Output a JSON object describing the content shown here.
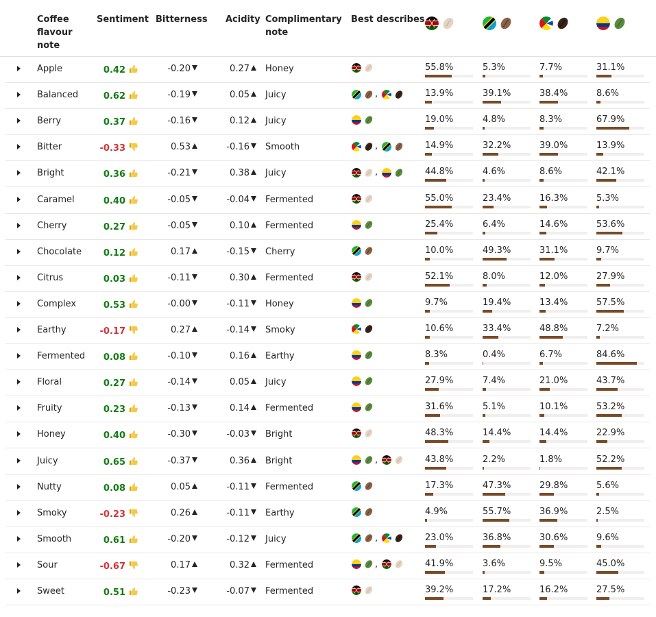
{
  "headers": {
    "flavour": "Coffee flavour note",
    "sentiment": "Sentiment",
    "bitterness": "Bitterness",
    "acidity": "Acidity",
    "complimentary": "Complimentary note",
    "best": "Best describes",
    "regions": [
      {
        "flag": "kenya-flag",
        "bean": "light-bean"
      },
      {
        "flag": "tanzania-flag",
        "bean": "medium-bean"
      },
      {
        "flag": "ethiopia-flag",
        "bean": "dark-bean"
      },
      {
        "flag": "colombia-flag",
        "bean": "green-bean"
      }
    ]
  },
  "colors": {
    "positive": "#107c10",
    "negative": "#d13438",
    "bar": "#7a4a26",
    "track": "#f0efee"
  },
  "rows": [
    {
      "note": "Apple",
      "sentiment": "0.42",
      "sent_dir": "up",
      "bitterness": "-0.20",
      "bit_dir": "down",
      "acidity": "0.27",
      "acid_dir": "up",
      "comp": "Honey",
      "best": [
        [
          "kenya",
          "light"
        ]
      ],
      "pct": [
        "55.8%",
        "5.3%",
        "7.7%",
        "31.1%"
      ],
      "frac": [
        0.558,
        0.053,
        0.077,
        0.311
      ]
    },
    {
      "note": "Balanced",
      "sentiment": "0.62",
      "sent_dir": "up",
      "bitterness": "-0.19",
      "bit_dir": "down",
      "acidity": "0.05",
      "acid_dir": "up",
      "comp": "Juicy",
      "best": [
        [
          "tanzania",
          "medium"
        ],
        [
          "ethiopia",
          "dark"
        ]
      ],
      "pct": [
        "13.9%",
        "39.1%",
        "38.4%",
        "8.6%"
      ],
      "frac": [
        0.139,
        0.391,
        0.384,
        0.086
      ]
    },
    {
      "note": "Berry",
      "sentiment": "0.37",
      "sent_dir": "up",
      "bitterness": "-0.16",
      "bit_dir": "down",
      "acidity": "0.12",
      "acid_dir": "up",
      "comp": "Juicy",
      "best": [
        [
          "colombia",
          "green"
        ]
      ],
      "pct": [
        "19.0%",
        "4.8%",
        "8.3%",
        "67.9%"
      ],
      "frac": [
        0.19,
        0.048,
        0.083,
        0.679
      ]
    },
    {
      "note": "Bitter",
      "sentiment": "-0.33",
      "sent_dir": "down",
      "bitterness": "0.53",
      "bit_dir": "up",
      "acidity": "-0.16",
      "acid_dir": "down",
      "comp": "Smooth",
      "best": [
        [
          "ethiopia",
          "dark"
        ],
        [
          "tanzania",
          "medium"
        ]
      ],
      "pct": [
        "14.9%",
        "32.2%",
        "39.0%",
        "13.9%"
      ],
      "frac": [
        0.149,
        0.322,
        0.39,
        0.139
      ]
    },
    {
      "note": "Bright",
      "sentiment": "0.36",
      "sent_dir": "up",
      "bitterness": "-0.21",
      "bit_dir": "down",
      "acidity": "0.38",
      "acid_dir": "up",
      "comp": "Juicy",
      "best": [
        [
          "kenya",
          "light"
        ],
        [
          "colombia",
          "green"
        ]
      ],
      "pct": [
        "44.8%",
        "4.6%",
        "8.6%",
        "42.1%"
      ],
      "frac": [
        0.448,
        0.046,
        0.086,
        0.421
      ]
    },
    {
      "note": "Caramel",
      "sentiment": "0.40",
      "sent_dir": "up",
      "bitterness": "-0.05",
      "bit_dir": "down",
      "acidity": "-0.04",
      "acid_dir": "down",
      "comp": "Fermented",
      "best": [
        [
          "kenya",
          "light"
        ]
      ],
      "pct": [
        "55.0%",
        "23.4%",
        "16.3%",
        "5.3%"
      ],
      "frac": [
        0.55,
        0.234,
        0.163,
        0.053
      ]
    },
    {
      "note": "Cherry",
      "sentiment": "0.27",
      "sent_dir": "up",
      "bitterness": "-0.05",
      "bit_dir": "down",
      "acidity": "0.10",
      "acid_dir": "up",
      "comp": "Fermented",
      "best": [
        [
          "colombia",
          "green"
        ]
      ],
      "pct": [
        "25.4%",
        "6.4%",
        "14.6%",
        "53.6%"
      ],
      "frac": [
        0.254,
        0.064,
        0.146,
        0.536
      ]
    },
    {
      "note": "Chocolate",
      "sentiment": "0.12",
      "sent_dir": "up",
      "bitterness": "0.17",
      "bit_dir": "up",
      "acidity": "-0.15",
      "acid_dir": "down",
      "comp": "Cherry",
      "best": [
        [
          "tanzania",
          "medium"
        ]
      ],
      "pct": [
        "10.0%",
        "49.3%",
        "31.1%",
        "9.7%"
      ],
      "frac": [
        0.1,
        0.493,
        0.311,
        0.097
      ]
    },
    {
      "note": "Citrus",
      "sentiment": "0.03",
      "sent_dir": "up",
      "bitterness": "-0.11",
      "bit_dir": "down",
      "acidity": "0.30",
      "acid_dir": "up",
      "comp": "Fermented",
      "best": [
        [
          "kenya",
          "light"
        ]
      ],
      "pct": [
        "52.1%",
        "8.0%",
        "12.0%",
        "27.9%"
      ],
      "frac": [
        0.521,
        0.08,
        0.12,
        0.279
      ]
    },
    {
      "note": "Complex",
      "sentiment": "0.53",
      "sent_dir": "up",
      "bitterness": "-0.00",
      "bit_dir": "down",
      "acidity": "-0.11",
      "acid_dir": "down",
      "comp": "Honey",
      "best": [
        [
          "colombia",
          "green"
        ]
      ],
      "pct": [
        "9.7%",
        "19.4%",
        "13.4%",
        "57.5%"
      ],
      "frac": [
        0.097,
        0.194,
        0.134,
        0.575
      ]
    },
    {
      "note": "Earthy",
      "sentiment": "-0.17",
      "sent_dir": "down",
      "bitterness": "0.27",
      "bit_dir": "up",
      "acidity": "-0.14",
      "acid_dir": "down",
      "comp": "Smoky",
      "best": [
        [
          "ethiopia",
          "dark"
        ]
      ],
      "pct": [
        "10.6%",
        "33.4%",
        "48.8%",
        "7.2%"
      ],
      "frac": [
        0.106,
        0.334,
        0.488,
        0.072
      ]
    },
    {
      "note": "Fermented",
      "sentiment": "0.08",
      "sent_dir": "up",
      "bitterness": "-0.10",
      "bit_dir": "down",
      "acidity": "0.16",
      "acid_dir": "up",
      "comp": "Earthy",
      "best": [
        [
          "colombia",
          "green"
        ]
      ],
      "pct": [
        "8.3%",
        "0.4%",
        "6.7%",
        "84.6%"
      ],
      "frac": [
        0.083,
        0.004,
        0.067,
        0.846
      ]
    },
    {
      "note": "Floral",
      "sentiment": "0.27",
      "sent_dir": "up",
      "bitterness": "-0.14",
      "bit_dir": "down",
      "acidity": "0.05",
      "acid_dir": "up",
      "comp": "Juicy",
      "best": [
        [
          "colombia",
          "green"
        ]
      ],
      "pct": [
        "27.9%",
        "7.4%",
        "21.0%",
        "43.7%"
      ],
      "frac": [
        0.279,
        0.074,
        0.21,
        0.437
      ]
    },
    {
      "note": "Fruity",
      "sentiment": "0.23",
      "sent_dir": "up",
      "bitterness": "-0.13",
      "bit_dir": "down",
      "acidity": "0.14",
      "acid_dir": "up",
      "comp": "Fermented",
      "best": [
        [
          "colombia",
          "green"
        ]
      ],
      "pct": [
        "31.6%",
        "5.1%",
        "10.1%",
        "53.2%"
      ],
      "frac": [
        0.316,
        0.051,
        0.101,
        0.532
      ]
    },
    {
      "note": "Honey",
      "sentiment": "0.40",
      "sent_dir": "up",
      "bitterness": "-0.30",
      "bit_dir": "down",
      "acidity": "-0.03",
      "acid_dir": "down",
      "comp": "Bright",
      "best": [
        [
          "kenya",
          "light"
        ]
      ],
      "pct": [
        "48.3%",
        "14.4%",
        "14.4%",
        "22.9%"
      ],
      "frac": [
        0.483,
        0.144,
        0.144,
        0.229
      ]
    },
    {
      "note": "Juicy",
      "sentiment": "0.65",
      "sent_dir": "up",
      "bitterness": "-0.37",
      "bit_dir": "down",
      "acidity": "0.36",
      "acid_dir": "up",
      "comp": "Bright",
      "best": [
        [
          "colombia",
          "green"
        ],
        [
          "kenya",
          "light"
        ]
      ],
      "pct": [
        "43.8%",
        "2.2%",
        "1.8%",
        "52.2%"
      ],
      "frac": [
        0.438,
        0.022,
        0.018,
        0.522
      ]
    },
    {
      "note": "Nutty",
      "sentiment": "0.08",
      "sent_dir": "up",
      "bitterness": "0.05",
      "bit_dir": "up",
      "acidity": "-0.11",
      "acid_dir": "down",
      "comp": "Fermented",
      "best": [
        [
          "tanzania",
          "medium"
        ]
      ],
      "pct": [
        "17.3%",
        "47.3%",
        "29.8%",
        "5.6%"
      ],
      "frac": [
        0.173,
        0.473,
        0.298,
        0.056
      ]
    },
    {
      "note": "Smoky",
      "sentiment": "-0.23",
      "sent_dir": "down",
      "bitterness": "0.26",
      "bit_dir": "up",
      "acidity": "-0.11",
      "acid_dir": "down",
      "comp": "Earthy",
      "best": [
        [
          "tanzania",
          "medium"
        ]
      ],
      "pct": [
        "4.9%",
        "55.7%",
        "36.9%",
        "2.5%"
      ],
      "frac": [
        0.049,
        0.557,
        0.369,
        0.025
      ]
    },
    {
      "note": "Smooth",
      "sentiment": "0.61",
      "sent_dir": "up",
      "bitterness": "-0.20",
      "bit_dir": "down",
      "acidity": "-0.12",
      "acid_dir": "down",
      "comp": "Juicy",
      "best": [
        [
          "tanzania",
          "medium"
        ],
        [
          "ethiopia",
          "dark"
        ]
      ],
      "pct": [
        "23.0%",
        "36.8%",
        "30.6%",
        "9.6%"
      ],
      "frac": [
        0.23,
        0.368,
        0.306,
        0.096
      ]
    },
    {
      "note": "Sour",
      "sentiment": "-0.67",
      "sent_dir": "down",
      "bitterness": "0.17",
      "bit_dir": "up",
      "acidity": "0.32",
      "acid_dir": "up",
      "comp": "Fermented",
      "best": [
        [
          "colombia",
          "green"
        ],
        [
          "kenya",
          "light"
        ]
      ],
      "pct": [
        "41.9%",
        "3.6%",
        "9.5%",
        "45.0%"
      ],
      "frac": [
        0.419,
        0.036,
        0.095,
        0.45
      ]
    },
    {
      "note": "Sweet",
      "sentiment": "0.51",
      "sent_dir": "up",
      "bitterness": "-0.23",
      "bit_dir": "down",
      "acidity": "-0.07",
      "acid_dir": "down",
      "comp": "Fermented",
      "best": [
        [
          "kenya",
          "light"
        ]
      ],
      "pct": [
        "39.2%",
        "17.2%",
        "16.2%",
        "27.5%"
      ],
      "frac": [
        0.392,
        0.172,
        0.162,
        0.275
      ]
    }
  ]
}
